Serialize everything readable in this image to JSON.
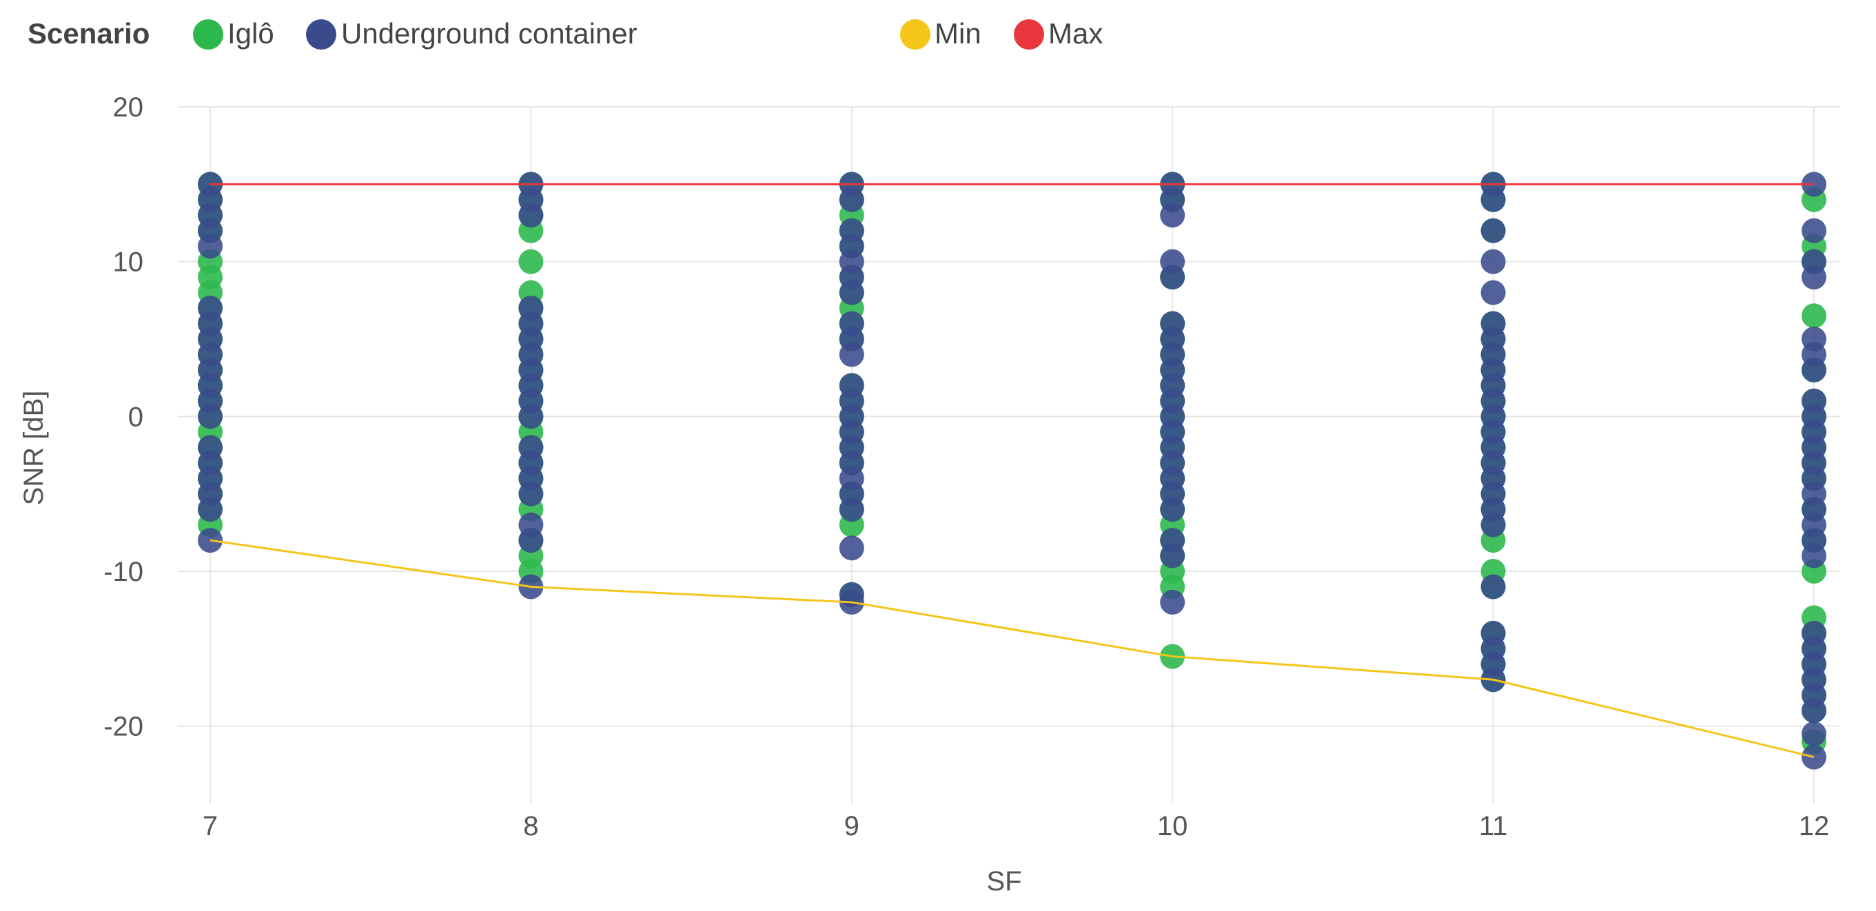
{
  "chart_data": {
    "type": "scatter",
    "title": "",
    "legend": {
      "title": "Scenario",
      "placement": "top-left",
      "entries": [
        {
          "label": "Iglô",
          "color": "#2db84d"
        },
        {
          "label": "Underground container",
          "color": "#3a4b8c"
        },
        {
          "label": "Min",
          "color": "#f5c518"
        },
        {
          "label": "Max",
          "color": "#e8363c"
        }
      ]
    },
    "xlabel": "SF",
    "ylabel": "SNR [dB]",
    "x_categories": [
      "7",
      "8",
      "9",
      "10",
      "11",
      "12"
    ],
    "ylim": [
      -25,
      20
    ],
    "yticks": [
      "20",
      "10",
      "0",
      "-10",
      "-20"
    ],
    "yticks_values": [
      20,
      10,
      0,
      -10,
      -20
    ],
    "grid": true,
    "series": [
      {
        "name": "Iglô",
        "type": "scatter",
        "color": "#2db84d",
        "points": [
          [
            7,
            15
          ],
          [
            7,
            14
          ],
          [
            7,
            13
          ],
          [
            7,
            12
          ],
          [
            7,
            10
          ],
          [
            7,
            9
          ],
          [
            7,
            8
          ],
          [
            7,
            7
          ],
          [
            7,
            6
          ],
          [
            7,
            5
          ],
          [
            7,
            4
          ],
          [
            7,
            3
          ],
          [
            7,
            2
          ],
          [
            7,
            1
          ],
          [
            7,
            0
          ],
          [
            7,
            -1
          ],
          [
            7,
            -2
          ],
          [
            7,
            -3
          ],
          [
            7,
            -4
          ],
          [
            7,
            -5
          ],
          [
            7,
            -6
          ],
          [
            7,
            -7
          ],
          [
            8,
            15
          ],
          [
            8,
            14
          ],
          [
            8,
            13
          ],
          [
            8,
            12
          ],
          [
            8,
            10
          ],
          [
            8,
            8
          ],
          [
            8,
            7
          ],
          [
            8,
            6
          ],
          [
            8,
            5
          ],
          [
            8,
            4
          ],
          [
            8,
            3
          ],
          [
            8,
            2
          ],
          [
            8,
            1
          ],
          [
            8,
            0
          ],
          [
            8,
            -1
          ],
          [
            8,
            -2
          ],
          [
            8,
            -3
          ],
          [
            8,
            -4
          ],
          [
            8,
            -5
          ],
          [
            8,
            -6
          ],
          [
            8,
            -8
          ],
          [
            8,
            -9
          ],
          [
            8,
            -10
          ],
          [
            9,
            15
          ],
          [
            9,
            14
          ],
          [
            9,
            13
          ],
          [
            9,
            12
          ],
          [
            9,
            11
          ],
          [
            9,
            9
          ],
          [
            9,
            8
          ],
          [
            9,
            7
          ],
          [
            9,
            6
          ],
          [
            9,
            5
          ],
          [
            9,
            2
          ],
          [
            9,
            1
          ],
          [
            9,
            0
          ],
          [
            9,
            -1
          ],
          [
            9,
            -2
          ],
          [
            9,
            -3
          ],
          [
            9,
            -5
          ],
          [
            9,
            -6
          ],
          [
            9,
            -7
          ],
          [
            9,
            -11.5
          ],
          [
            10,
            15
          ],
          [
            10,
            14
          ],
          [
            10,
            9
          ],
          [
            10,
            6
          ],
          [
            10,
            5
          ],
          [
            10,
            4
          ],
          [
            10,
            3
          ],
          [
            10,
            2
          ],
          [
            10,
            1
          ],
          [
            10,
            0
          ],
          [
            10,
            -1
          ],
          [
            10,
            -2
          ],
          [
            10,
            -3
          ],
          [
            10,
            -4
          ],
          [
            10,
            -5
          ],
          [
            10,
            -6
          ],
          [
            10,
            -7
          ],
          [
            10,
            -8
          ],
          [
            10,
            -9
          ],
          [
            10,
            -10
          ],
          [
            10,
            -11
          ],
          [
            10,
            -15.5
          ],
          [
            11,
            15
          ],
          [
            11,
            14
          ],
          [
            11,
            12
          ],
          [
            11,
            6
          ],
          [
            11,
            5
          ],
          [
            11,
            4
          ],
          [
            11,
            3
          ],
          [
            11,
            2
          ],
          [
            11,
            1
          ],
          [
            11,
            0
          ],
          [
            11,
            -1
          ],
          [
            11,
            -2
          ],
          [
            11,
            -3
          ],
          [
            11,
            -4
          ],
          [
            11,
            -5
          ],
          [
            11,
            -6
          ],
          [
            11,
            -7
          ],
          [
            11,
            -8
          ],
          [
            11,
            -10
          ],
          [
            11,
            -11
          ],
          [
            11,
            -14
          ],
          [
            11,
            -15
          ],
          [
            11,
            -16
          ],
          [
            11,
            -17
          ],
          [
            12,
            14
          ],
          [
            12,
            11
          ],
          [
            12,
            10
          ],
          [
            12,
            6.5
          ],
          [
            12,
            3
          ],
          [
            12,
            1
          ],
          [
            12,
            0
          ],
          [
            12,
            -1
          ],
          [
            12,
            -2
          ],
          [
            12,
            -3
          ],
          [
            12,
            -4
          ],
          [
            12,
            -6
          ],
          [
            12,
            -8
          ],
          [
            12,
            -10
          ],
          [
            12,
            -13
          ],
          [
            12,
            -14
          ],
          [
            12,
            -15
          ],
          [
            12,
            -16
          ],
          [
            12,
            -17
          ],
          [
            12,
            -18
          ],
          [
            12,
            -19
          ],
          [
            12,
            -21
          ]
        ]
      },
      {
        "name": "Underground container",
        "type": "scatter",
        "color": "#3a4b8c",
        "points": [
          [
            7,
            15
          ],
          [
            7,
            14
          ],
          [
            7,
            13
          ],
          [
            7,
            12
          ],
          [
            7,
            11
          ],
          [
            7,
            7
          ],
          [
            7,
            6
          ],
          [
            7,
            5
          ],
          [
            7,
            4
          ],
          [
            7,
            3
          ],
          [
            7,
            2
          ],
          [
            7,
            1
          ],
          [
            7,
            0
          ],
          [
            7,
            -2
          ],
          [
            7,
            -3
          ],
          [
            7,
            -4
          ],
          [
            7,
            -5
          ],
          [
            7,
            -6
          ],
          [
            7,
            -8
          ],
          [
            8,
            15
          ],
          [
            8,
            14
          ],
          [
            8,
            13
          ],
          [
            8,
            7
          ],
          [
            8,
            6
          ],
          [
            8,
            5
          ],
          [
            8,
            4
          ],
          [
            8,
            3
          ],
          [
            8,
            2
          ],
          [
            8,
            1
          ],
          [
            8,
            0
          ],
          [
            8,
            -2
          ],
          [
            8,
            -3
          ],
          [
            8,
            -4
          ],
          [
            8,
            -5
          ],
          [
            8,
            -7
          ],
          [
            8,
            -8
          ],
          [
            8,
            -11
          ],
          [
            9,
            15
          ],
          [
            9,
            14
          ],
          [
            9,
            12
          ],
          [
            9,
            11
          ],
          [
            9,
            10
          ],
          [
            9,
            9
          ],
          [
            9,
            8
          ],
          [
            9,
            6
          ],
          [
            9,
            5
          ],
          [
            9,
            4
          ],
          [
            9,
            2
          ],
          [
            9,
            1
          ],
          [
            9,
            0
          ],
          [
            9,
            -1
          ],
          [
            9,
            -2
          ],
          [
            9,
            -3
          ],
          [
            9,
            -4
          ],
          [
            9,
            -5
          ],
          [
            9,
            -6
          ],
          [
            9,
            -8.5
          ],
          [
            9,
            -11.5
          ],
          [
            9,
            -12
          ],
          [
            10,
            15
          ],
          [
            10,
            14
          ],
          [
            10,
            13
          ],
          [
            10,
            10
          ],
          [
            10,
            9
          ],
          [
            10,
            6
          ],
          [
            10,
            5
          ],
          [
            10,
            4
          ],
          [
            10,
            3
          ],
          [
            10,
            2
          ],
          [
            10,
            1
          ],
          [
            10,
            0
          ],
          [
            10,
            -1
          ],
          [
            10,
            -2
          ],
          [
            10,
            -3
          ],
          [
            10,
            -4
          ],
          [
            10,
            -5
          ],
          [
            10,
            -6
          ],
          [
            10,
            -8
          ],
          [
            10,
            -9
          ],
          [
            10,
            -12
          ],
          [
            11,
            15
          ],
          [
            11,
            14
          ],
          [
            11,
            12
          ],
          [
            11,
            10
          ],
          [
            11,
            8
          ],
          [
            11,
            6
          ],
          [
            11,
            5
          ],
          [
            11,
            4
          ],
          [
            11,
            3
          ],
          [
            11,
            2
          ],
          [
            11,
            1
          ],
          [
            11,
            0
          ],
          [
            11,
            -1
          ],
          [
            11,
            -2
          ],
          [
            11,
            -3
          ],
          [
            11,
            -4
          ],
          [
            11,
            -5
          ],
          [
            11,
            -6
          ],
          [
            11,
            -7
          ],
          [
            11,
            -11
          ],
          [
            11,
            -14
          ],
          [
            11,
            -15
          ],
          [
            11,
            -16
          ],
          [
            11,
            -17
          ],
          [
            12,
            15
          ],
          [
            12,
            12
          ],
          [
            12,
            10
          ],
          [
            12,
            9
          ],
          [
            12,
            5
          ],
          [
            12,
            4
          ],
          [
            12,
            3
          ],
          [
            12,
            1
          ],
          [
            12,
            0
          ],
          [
            12,
            -1
          ],
          [
            12,
            -2
          ],
          [
            12,
            -3
          ],
          [
            12,
            -4
          ],
          [
            12,
            -5
          ],
          [
            12,
            -6
          ],
          [
            12,
            -7
          ],
          [
            12,
            -8
          ],
          [
            12,
            -9
          ],
          [
            12,
            -14
          ],
          [
            12,
            -15
          ],
          [
            12,
            -16
          ],
          [
            12,
            -17
          ],
          [
            12,
            -18
          ],
          [
            12,
            -19
          ],
          [
            12,
            -20.5
          ],
          [
            12,
            -22
          ]
        ]
      },
      {
        "name": "Min",
        "type": "line",
        "color": "#f5c518",
        "points": [
          [
            7,
            -8
          ],
          [
            8,
            -11
          ],
          [
            9,
            -12
          ],
          [
            10,
            -15.5
          ],
          [
            11,
            -17
          ],
          [
            12,
            -22
          ]
        ]
      },
      {
        "name": "Max",
        "type": "line",
        "color": "#e8363c",
        "points": [
          [
            7,
            15
          ],
          [
            8,
            15
          ],
          [
            9,
            15
          ],
          [
            10,
            15
          ],
          [
            11,
            15
          ],
          [
            12,
            15
          ]
        ]
      }
    ]
  }
}
